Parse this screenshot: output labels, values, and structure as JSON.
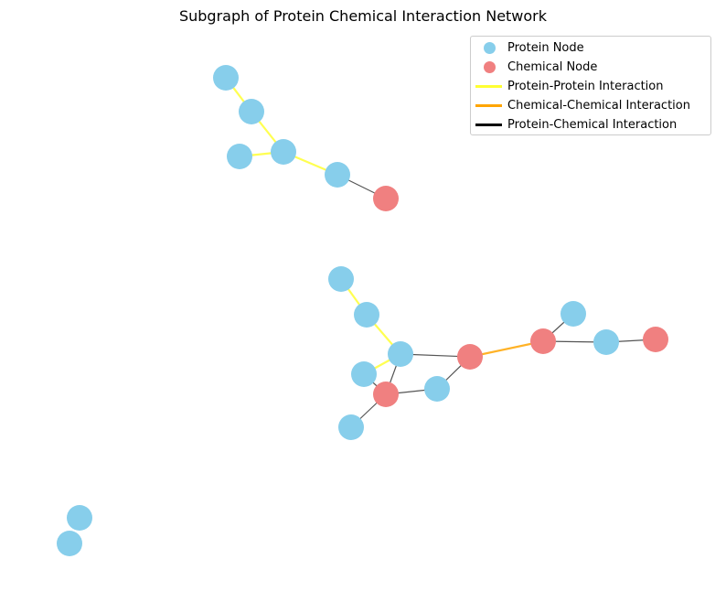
{
  "title": "Subgraph of Protein Chemical Interaction Network",
  "colors": {
    "protein": "#87CEEB",
    "chemical": "#F08080",
    "protein_protein": "#FFFF33",
    "chemical_chemical": "#FFA500",
    "protein_chemical": "#000000",
    "edge_drawn": "#555555"
  },
  "legend": {
    "placement": "top-right",
    "items": [
      {
        "label": "Protein Node",
        "kind": "dot",
        "color": "#87CEEB"
      },
      {
        "label": "Chemical Node",
        "kind": "dot",
        "color": "#F08080"
      },
      {
        "label": "Protein-Protein Interaction",
        "kind": "line",
        "color": "#FFFF33"
      },
      {
        "label": "Chemical-Chemical Interaction",
        "kind": "line",
        "color": "#FFA500"
      },
      {
        "label": "Protein-Chemical Interaction",
        "kind": "line",
        "color": "#000000"
      }
    ]
  },
  "nodes": [
    {
      "id": "p1",
      "type": "protein"
    },
    {
      "id": "p2",
      "type": "protein"
    },
    {
      "id": "p3",
      "type": "protein"
    },
    {
      "id": "p4",
      "type": "protein"
    },
    {
      "id": "p5",
      "type": "protein"
    },
    {
      "id": "c1",
      "type": "chemical"
    },
    {
      "id": "p6",
      "type": "protein"
    },
    {
      "id": "p7",
      "type": "protein"
    },
    {
      "id": "p8",
      "type": "protein"
    },
    {
      "id": "p9",
      "type": "protein"
    },
    {
      "id": "c2",
      "type": "chemical"
    },
    {
      "id": "p10",
      "type": "protein"
    },
    {
      "id": "p11",
      "type": "protein"
    },
    {
      "id": "c3",
      "type": "chemical"
    },
    {
      "id": "c4",
      "type": "chemical"
    },
    {
      "id": "p12",
      "type": "protein"
    },
    {
      "id": "p13",
      "type": "protein"
    },
    {
      "id": "c5",
      "type": "chemical"
    },
    {
      "id": "p14",
      "type": "protein"
    },
    {
      "id": "p15",
      "type": "protein"
    }
  ],
  "edges": [
    {
      "source": "p1",
      "target": "p2",
      "type": "protein_protein"
    },
    {
      "source": "p2",
      "target": "p4",
      "type": "protein_protein"
    },
    {
      "source": "p3",
      "target": "p4",
      "type": "protein_protein"
    },
    {
      "source": "p4",
      "target": "p5",
      "type": "protein_protein"
    },
    {
      "source": "p5",
      "target": "c1",
      "type": "protein_chemical"
    },
    {
      "source": "p6",
      "target": "p7",
      "type": "protein_protein"
    },
    {
      "source": "p7",
      "target": "p8",
      "type": "protein_protein"
    },
    {
      "source": "p8",
      "target": "p9",
      "type": "protein_protein"
    },
    {
      "source": "p8",
      "target": "c3",
      "type": "protein_chemical"
    },
    {
      "source": "p8",
      "target": "c2",
      "type": "protein_chemical"
    },
    {
      "source": "p9",
      "target": "c2",
      "type": "protein_chemical"
    },
    {
      "source": "c2",
      "target": "p10",
      "type": "protein_chemical"
    },
    {
      "source": "c2",
      "target": "p11",
      "type": "protein_chemical"
    },
    {
      "source": "p11",
      "target": "c3",
      "type": "protein_chemical"
    },
    {
      "source": "c3",
      "target": "c4",
      "type": "chemical_chemical"
    },
    {
      "source": "c4",
      "target": "p12",
      "type": "protein_chemical"
    },
    {
      "source": "c4",
      "target": "p13",
      "type": "protein_chemical"
    },
    {
      "source": "p13",
      "target": "c5",
      "type": "protein_chemical"
    }
  ]
}
